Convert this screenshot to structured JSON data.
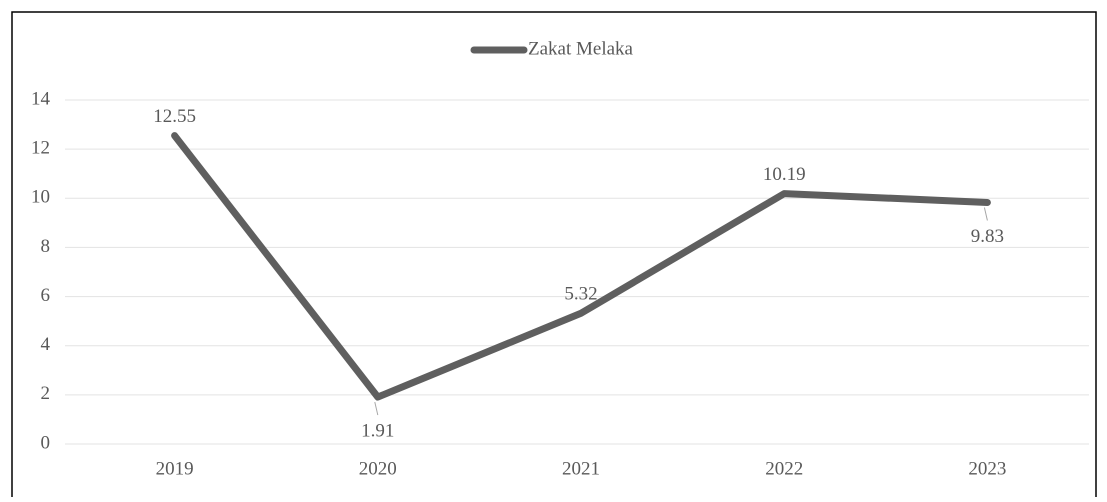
{
  "chart_data": {
    "type": "line",
    "categories": [
      "2019",
      "2020",
      "2021",
      "2022",
      "2023"
    ],
    "series": [
      {
        "name": "Zakat Melaka",
        "color": "#5f5f5f",
        "values": [
          12.55,
          1.91,
          5.32,
          10.19,
          9.83
        ]
      }
    ],
    "ylim": [
      0,
      14
    ],
    "yticks": [
      0,
      2,
      4,
      6,
      8,
      10,
      12,
      14
    ],
    "grid": true,
    "legend": "top",
    "data_labels": true
  }
}
